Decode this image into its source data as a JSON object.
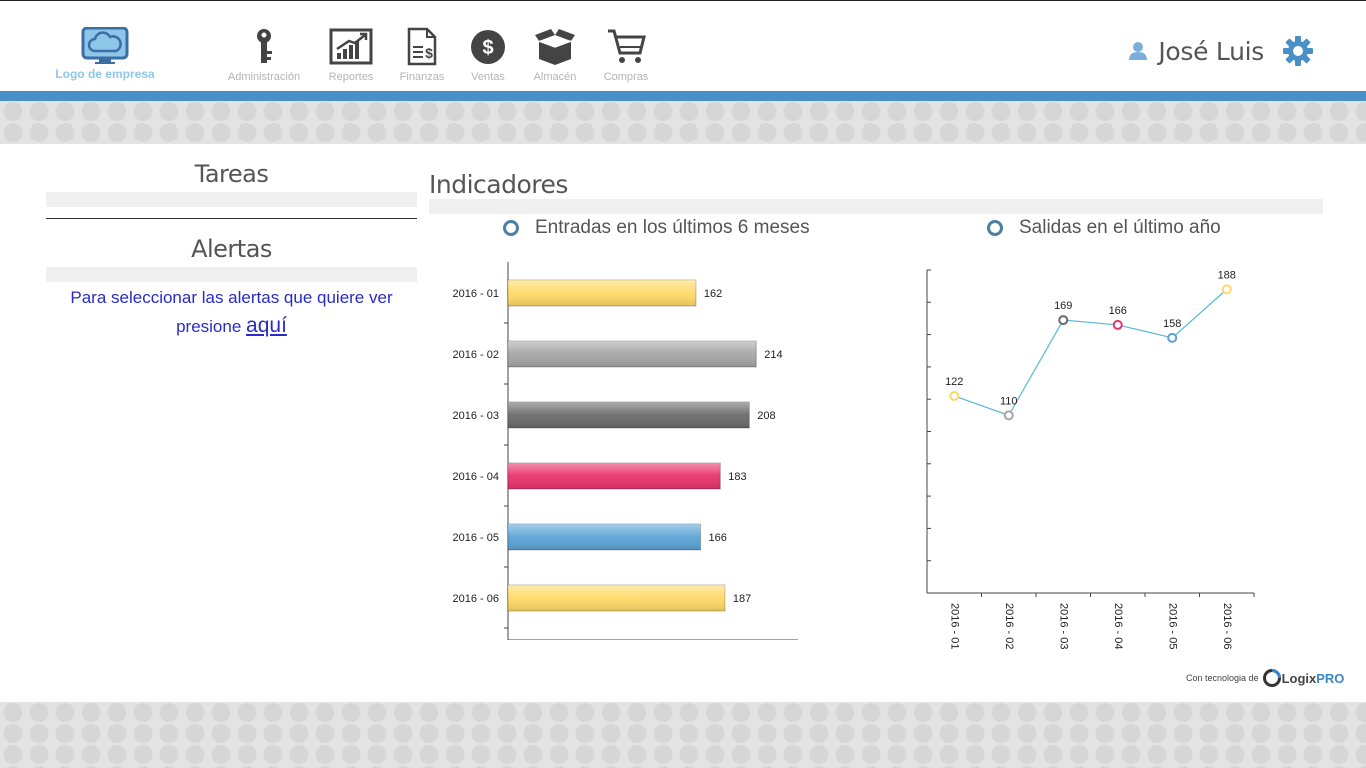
{
  "header": {
    "logo_text": "Logo de empresa",
    "nav": [
      {
        "label": "Administración",
        "icon": "key-icon"
      },
      {
        "label": "Reportes",
        "icon": "chart-trend-icon"
      },
      {
        "label": "Finanzas",
        "icon": "document-dollar-icon"
      },
      {
        "label": "Ventas",
        "icon": "dollar-circle-icon"
      },
      {
        "label": "Almacén",
        "icon": "box-icon"
      },
      {
        "label": "Compras",
        "icon": "cart-icon"
      }
    ],
    "user_name": "José Luis"
  },
  "sidebar": {
    "tasks_title": "Tareas",
    "alerts_title": "Alertas",
    "alerts_text": "Para seleccionar las alertas que quiere ver presione",
    "alerts_link": "aquí"
  },
  "indicators": {
    "title": "Indicadores"
  },
  "colors": {
    "accent_blue": "#4a90c8",
    "yellow": "#ffd966",
    "gray": "#a6a6a6",
    "dark_gray": "#6b6b6b",
    "pink": "#e8336e",
    "blue": "#5ba3d6"
  },
  "chart_data": [
    {
      "type": "bar",
      "orientation": "horizontal",
      "title": "Entradas en los últimos 6 meses",
      "categories": [
        "2016 - 01",
        "2016 - 02",
        "2016 - 03",
        "2016 - 04",
        "2016 - 05",
        "2016 - 06"
      ],
      "values": [
        162,
        214,
        208,
        183,
        166,
        187
      ],
      "bar_colors": [
        "#ffd966",
        "#a6a6a6",
        "#6b6b6b",
        "#e8336e",
        "#5ba3d6",
        "#ffd966"
      ],
      "xlim": [
        0,
        250
      ],
      "grid": false
    },
    {
      "type": "line",
      "title": "Salidas en el último año",
      "categories": [
        "2016 - 01",
        "2016 - 02",
        "2016 - 03",
        "2016 - 04",
        "2016 - 05",
        "2016 - 06"
      ],
      "values": [
        122,
        110,
        169,
        166,
        158,
        188
      ],
      "point_colors": [
        "#ffd966",
        "#a6a6a6",
        "#6b6b6b",
        "#e8336e",
        "#5ba3d6",
        "#ffd966"
      ],
      "line_color": "#5bb8d8",
      "ylim": [
        0,
        200
      ],
      "grid": false
    }
  ],
  "footer": {
    "small_text": "Con tecnologia de",
    "brand_logix": "Logix",
    "brand_pro": "PRO"
  }
}
